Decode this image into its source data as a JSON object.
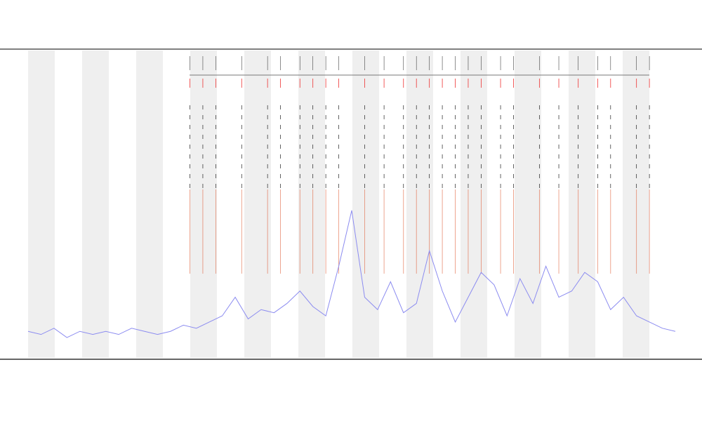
{
  "chart_data": {
    "type": "line",
    "xlim": [
      0,
      100
    ],
    "ylim": [
      0,
      100
    ],
    "x": [
      0,
      2,
      4,
      6,
      8,
      10,
      12,
      14,
      16,
      18,
      20,
      22,
      24,
      26,
      28,
      30,
      32,
      34,
      36,
      38,
      40,
      42,
      44,
      46,
      48,
      50,
      52,
      54,
      56,
      58,
      60,
      62,
      64,
      66,
      68,
      70,
      72,
      74,
      76,
      78,
      80,
      82,
      84,
      86,
      88,
      90,
      92,
      94,
      96,
      98,
      100
    ],
    "series": [
      {
        "color": "#8c8cf0",
        "values": [
          9,
          8,
          10,
          7,
          9,
          8,
          9,
          8,
          10,
          9,
          8,
          9,
          11,
          10,
          12,
          14,
          20,
          13,
          16,
          15,
          18,
          22,
          17,
          14,
          30,
          48,
          20,
          16,
          25,
          15,
          18,
          35,
          22,
          12,
          20,
          28,
          24,
          14,
          26,
          18,
          30,
          20,
          22,
          28,
          25,
          16,
          20,
          14,
          12,
          10,
          9
        ]
      }
    ],
    "events": {
      "color": "#e0603a",
      "x": [
        25,
        27,
        29,
        33,
        37,
        39,
        42,
        44,
        46,
        48,
        52,
        55,
        58,
        60,
        62,
        64,
        66,
        68,
        70,
        73,
        75,
        79,
        82,
        85,
        88,
        90,
        94,
        96
      ]
    }
  }
}
